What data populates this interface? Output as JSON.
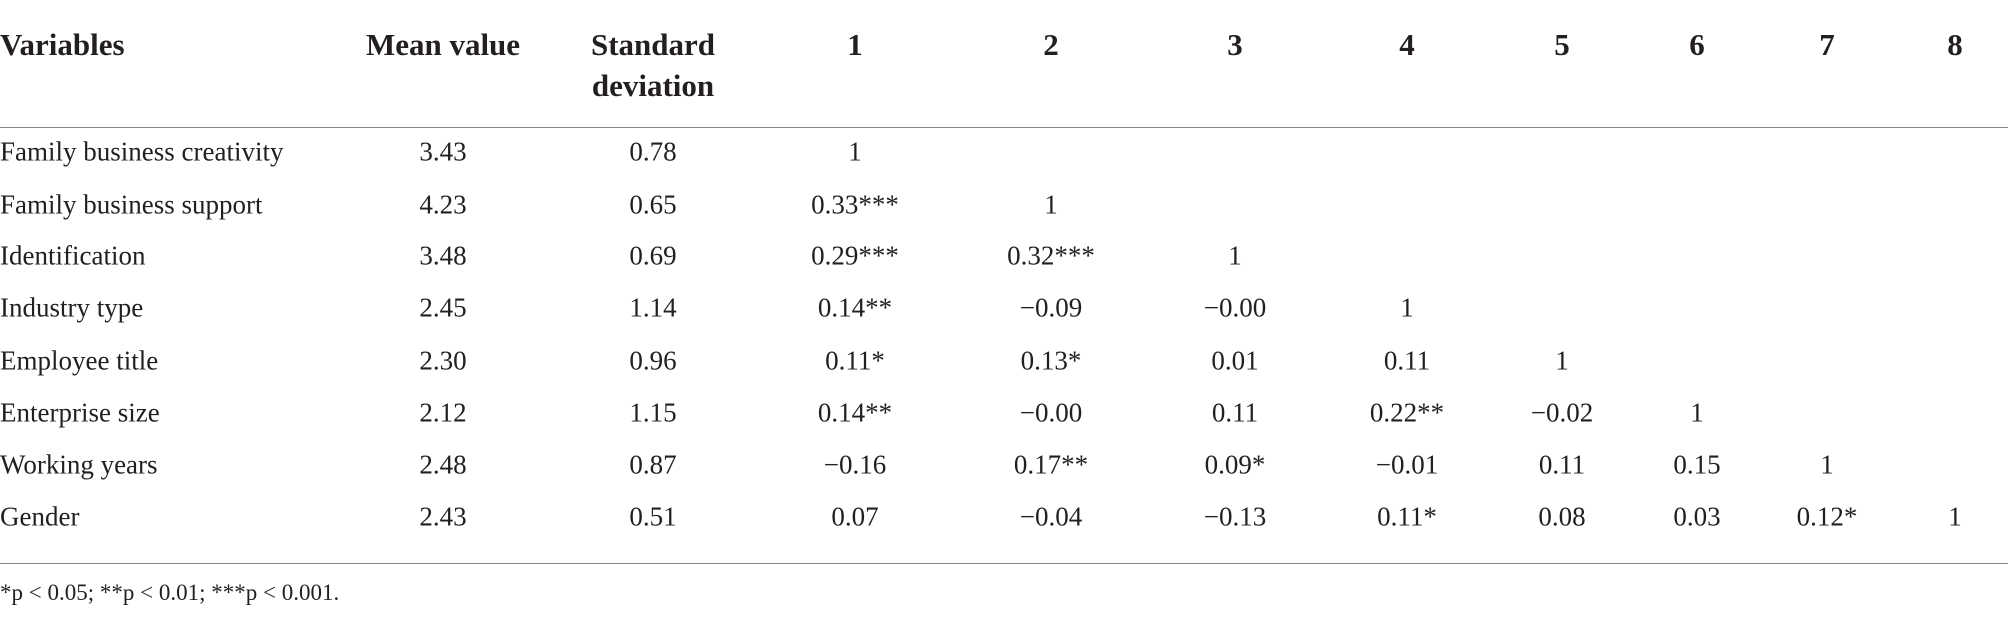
{
  "table": {
    "header": [
      "Variables",
      "Mean value",
      "Standard deviation",
      "1",
      "2",
      "3",
      "4",
      "5",
      "6",
      "7",
      "8"
    ],
    "rows": [
      [
        "Family business creativity",
        "3.43",
        "0.78",
        "1"
      ],
      [
        "Family business support",
        "4.23",
        "0.65",
        "0.33***",
        "1"
      ],
      [
        "Identification",
        "3.48",
        "0.69",
        "0.29***",
        "0.32***",
        "1"
      ],
      [
        "Industry type",
        "2.45",
        "1.14",
        "0.14**",
        "−0.09",
        "−0.00",
        "1"
      ],
      [
        "Employee title",
        "2.30",
        "0.96",
        "0.11*",
        "0.13*",
        "0.01",
        "0.11",
        "1"
      ],
      [
        "Enterprise size",
        "2.12",
        "1.15",
        "0.14**",
        "−0.00",
        "0.11",
        "0.22**",
        "−0.02",
        "1"
      ],
      [
        "Working years",
        "2.48",
        "0.87",
        "−0.16",
        "0.17**",
        "0.09*",
        "−0.01",
        "0.11",
        "0.15",
        "1"
      ],
      [
        "Gender",
        "2.43",
        "0.51",
        "0.07",
        "−0.04",
        "−0.13",
        "0.11*",
        "0.08",
        "0.03",
        "0.12*",
        "1"
      ]
    ],
    "footnote": "*p < 0.05; **p < 0.01; ***p < 0.001."
  }
}
